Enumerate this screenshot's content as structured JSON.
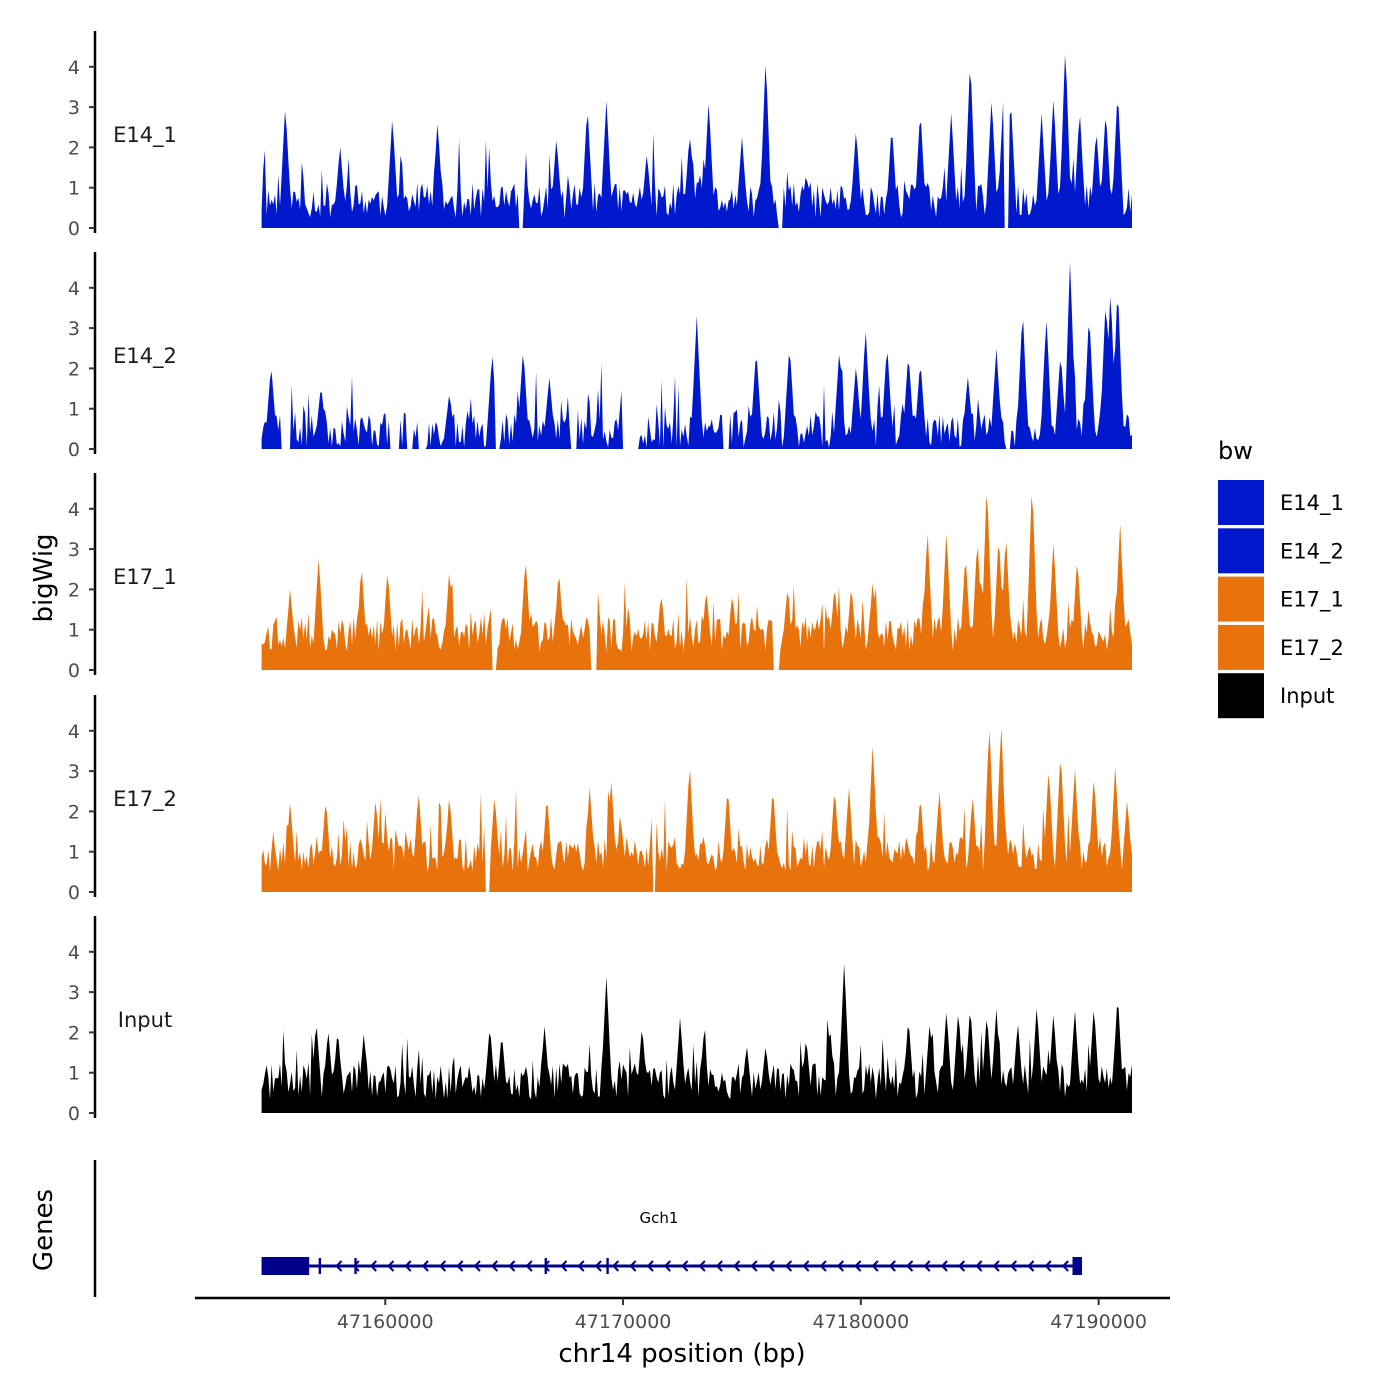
{
  "chart_data": {
    "type": "area",
    "ylabel": "bigWig",
    "xlabel": "chr14 position (bp)",
    "xlim": [
      47152000,
      47193000
    ],
    "ylim": [
      0,
      4.8
    ],
    "yticks": [
      0,
      1,
      2,
      3,
      4
    ],
    "xticks": [
      47160000,
      47170000,
      47180000,
      47190000
    ],
    "xtick_labels": [
      "47160000",
      "47170000",
      "47180000",
      "47190000"
    ],
    "data_range": [
      47154800,
      47191400
    ],
    "tracks": [
      {
        "name": "E14_1",
        "color": "#0019CC",
        "seed": 11,
        "base": 0.55,
        "spikes": [
          [
            47155800,
            2.9
          ],
          [
            47158100,
            1.9
          ],
          [
            47160300,
            2.6
          ],
          [
            47162200,
            2.5
          ],
          [
            47167200,
            2.1
          ],
          [
            47168500,
            2.9
          ],
          [
            47169300,
            3.0
          ],
          [
            47171000,
            1.7
          ],
          [
            47172800,
            2.2
          ],
          [
            47173600,
            3.0
          ],
          [
            47175000,
            2.1
          ],
          [
            47176000,
            4.1
          ],
          [
            47177700,
            1.2
          ],
          [
            47179800,
            2.3
          ],
          [
            47181300,
            2.4
          ],
          [
            47182500,
            2.8
          ],
          [
            47183800,
            2.7
          ],
          [
            47184600,
            4.1
          ],
          [
            47185500,
            3.1
          ],
          [
            47186000,
            3.2
          ],
          [
            47186300,
            3.1
          ],
          [
            47187600,
            2.7
          ],
          [
            47188100,
            3.1
          ],
          [
            47188600,
            4.4
          ],
          [
            47189200,
            2.8
          ],
          [
            47189900,
            2.3
          ],
          [
            47190300,
            2.8
          ],
          [
            47190800,
            3.3
          ]
        ],
        "gaps": [
          [
            47165600,
            47165800
          ],
          [
            47176500,
            47176700
          ],
          [
            47186000,
            47186200
          ]
        ]
      },
      {
        "name": "E14_2",
        "color": "#0019CC",
        "seed": 23,
        "base": 0.35,
        "spikes": [
          [
            47155200,
            2.0
          ],
          [
            47157300,
            1.5
          ],
          [
            47161500,
            1.4
          ],
          [
            47162700,
            1.3
          ],
          [
            47164500,
            2.3
          ],
          [
            47165800,
            2.4
          ],
          [
            47166900,
            1.7
          ],
          [
            47170000,
            1.8
          ],
          [
            47173100,
            3.2
          ],
          [
            47175600,
            2.4
          ],
          [
            47177000,
            2.5
          ],
          [
            47179100,
            2.4
          ],
          [
            47179800,
            2.0
          ],
          [
            47180200,
            2.9
          ],
          [
            47181100,
            2.5
          ],
          [
            47182000,
            2.3
          ],
          [
            47182500,
            2.1
          ],
          [
            47184500,
            1.7
          ],
          [
            47185700,
            2.4
          ],
          [
            47186800,
            3.4
          ],
          [
            47187800,
            3.2
          ],
          [
            47188400,
            2.3
          ],
          [
            47188800,
            4.6
          ],
          [
            47189600,
            3.3
          ],
          [
            47190300,
            3.7
          ],
          [
            47190500,
            3.9
          ],
          [
            47190800,
            4.0
          ]
        ],
        "gaps": [
          [
            47155600,
            47156000
          ],
          [
            47160200,
            47160600
          ],
          [
            47160900,
            47161200
          ],
          [
            47161400,
            47161700
          ],
          [
            47164600,
            47164800
          ],
          [
            47167800,
            47168100
          ],
          [
            47170000,
            47170700
          ],
          [
            47174200,
            47174500
          ],
          [
            47186100,
            47186300
          ]
        ]
      },
      {
        "name": "E17_1",
        "color": "#E8720C",
        "seed": 37,
        "base": 0.75,
        "spikes": [
          [
            47156000,
            1.8
          ],
          [
            47157200,
            2.6
          ],
          [
            47159000,
            2.4
          ],
          [
            47160100,
            2.3
          ],
          [
            47162700,
            2.3
          ],
          [
            47165900,
            2.6
          ],
          [
            47167300,
            2.3
          ],
          [
            47168900,
            2.1
          ],
          [
            47171600,
            1.7
          ],
          [
            47173500,
            1.8
          ],
          [
            47174600,
            1.7
          ],
          [
            47176900,
            1.7
          ],
          [
            47178900,
            1.9
          ],
          [
            47179600,
            1.9
          ],
          [
            47180500,
            2.0
          ],
          [
            47182800,
            3.3
          ],
          [
            47183600,
            3.3
          ],
          [
            47184400,
            2.7
          ],
          [
            47184900,
            3.1
          ],
          [
            47185300,
            4.5
          ],
          [
            47185800,
            3.2
          ],
          [
            47186100,
            3.2
          ],
          [
            47187200,
            4.5
          ],
          [
            47188100,
            3.0
          ],
          [
            47189100,
            2.6
          ],
          [
            47190900,
            3.5
          ]
        ],
        "gaps": [
          [
            47164500,
            47164700
          ],
          [
            47168600,
            47168900
          ],
          [
            47176300,
            47176600
          ]
        ]
      },
      {
        "name": "E17_2",
        "color": "#E8720C",
        "seed": 53,
        "base": 0.8,
        "spikes": [
          [
            47156000,
            2.0
          ],
          [
            47157500,
            2.1
          ],
          [
            47159600,
            2.1
          ],
          [
            47161400,
            2.3
          ],
          [
            47162700,
            2.2
          ],
          [
            47164600,
            2.2
          ],
          [
            47166800,
            2.2
          ],
          [
            47168600,
            2.4
          ],
          [
            47169500,
            2.6
          ],
          [
            47171300,
            2.6
          ],
          [
            47172800,
            3.0
          ],
          [
            47174400,
            2.4
          ],
          [
            47176300,
            2.4
          ],
          [
            47178900,
            2.4
          ],
          [
            47179500,
            2.4
          ],
          [
            47180500,
            3.5
          ],
          [
            47182500,
            2.2
          ],
          [
            47183300,
            2.3
          ],
          [
            47184700,
            2.2
          ],
          [
            47185400,
            4.0
          ],
          [
            47185900,
            4.0
          ],
          [
            47187900,
            2.9
          ],
          [
            47188400,
            3.3
          ],
          [
            47189000,
            2.9
          ],
          [
            47189800,
            2.7
          ],
          [
            47190700,
            2.9
          ],
          [
            47191200,
            2.1
          ]
        ],
        "gaps": [
          [
            47164200,
            47164400
          ],
          [
            47171200,
            47171400
          ]
        ]
      },
      {
        "name": "Input",
        "color": "#000000",
        "seed": 71,
        "base": 0.65,
        "spikes": [
          [
            47157100,
            2.1
          ],
          [
            47157600,
            1.9
          ],
          [
            47158000,
            1.9
          ],
          [
            47159100,
            1.8
          ],
          [
            47164400,
            2.0
          ],
          [
            47164900,
            1.8
          ],
          [
            47166700,
            2.0
          ],
          [
            47169300,
            3.2
          ],
          [
            47170800,
            2.0
          ],
          [
            47172400,
            2.2
          ],
          [
            47173400,
            1.8
          ],
          [
            47175200,
            1.5
          ],
          [
            47176000,
            1.5
          ],
          [
            47177700,
            1.7
          ],
          [
            47178700,
            2.0
          ],
          [
            47179300,
            3.6
          ],
          [
            47182000,
            2.2
          ],
          [
            47182900,
            2.1
          ],
          [
            47183600,
            2.4
          ],
          [
            47184100,
            2.4
          ],
          [
            47184600,
            2.5
          ],
          [
            47185300,
            2.3
          ],
          [
            47185700,
            2.4
          ],
          [
            47186600,
            2.1
          ],
          [
            47187400,
            2.5
          ],
          [
            47188100,
            2.3
          ],
          [
            47189000,
            2.4
          ],
          [
            47189800,
            2.5
          ],
          [
            47190800,
            2.8
          ]
        ],
        "gaps": []
      }
    ],
    "legend": {
      "title": "bw",
      "items": [
        {
          "label": "E14_1",
          "color": "#0019CC"
        },
        {
          "label": "E14_2",
          "color": "#0019CC"
        },
        {
          "label": "E17_1",
          "color": "#E8720C"
        },
        {
          "label": "E17_2",
          "color": "#E8720C"
        },
        {
          "label": "Input",
          "color": "#000000"
        }
      ]
    },
    "genes": {
      "panel_label": "Genes",
      "name": "Gch1",
      "strand": "-",
      "color": "#00008B",
      "start": 47154800,
      "end": 47189300,
      "exons": [
        [
          47154800,
          47156800
        ],
        [
          47157200,
          47157300
        ],
        [
          47158700,
          47158800
        ],
        [
          47166700,
          47166800
        ],
        [
          47169300,
          47169400
        ],
        [
          47188900,
          47189300
        ]
      ]
    }
  }
}
